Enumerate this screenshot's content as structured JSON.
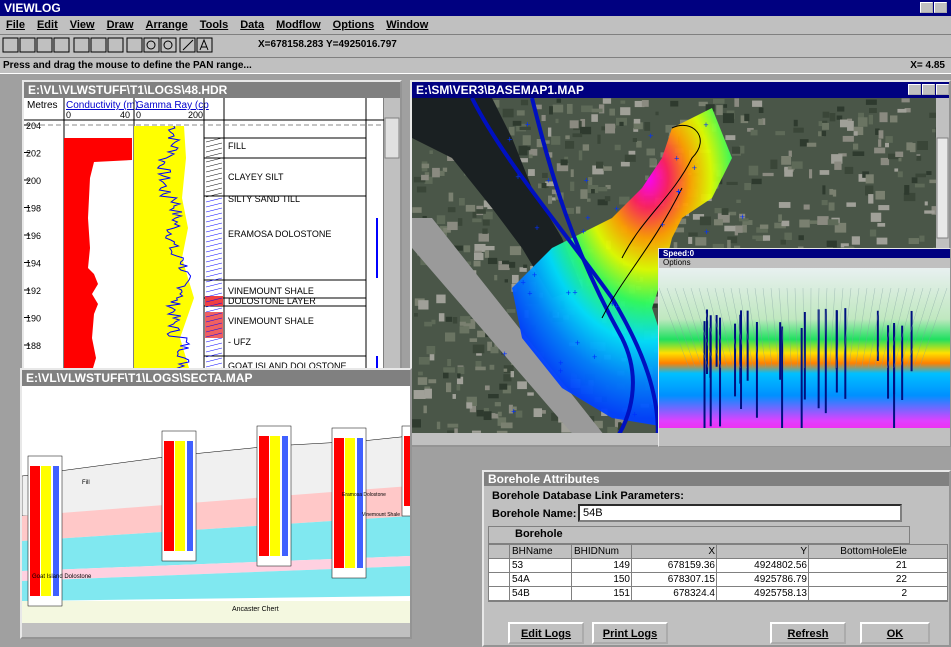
{
  "app": {
    "title": "VIEWLOG",
    "menu": [
      "File",
      "Edit",
      "View",
      "Draw",
      "Arrange",
      "Tools",
      "Data",
      "Modflow",
      "Options",
      "Window"
    ],
    "coords": "X=678158.283 Y=4925016.797",
    "status": "Press and drag the mouse to define the PAN range...",
    "status_right": "X= 4.85"
  },
  "log_window": {
    "title": "E:\\VL\\VLWSTUFF\\T1\\LOGS\\48.HDR",
    "depth_header": "Metres",
    "track1": "Conductivity (m)",
    "track2": "Gamma Ray (cp",
    "track1_scale": [
      "0",
      "40"
    ],
    "track2_scale": [
      "0",
      "200"
    ],
    "depths": [
      "204",
      "202",
      "200",
      "198",
      "196",
      "194",
      "192",
      "190",
      "188"
    ],
    "units": [
      "FILL",
      "CLAYEY SILT",
      "SILTY SAND TILL",
      "ERAMOSA DOLOSTONE",
      "VINEMOUNT SHALE",
      "DOLOSTONE LAYER",
      "VINEMOUNT SHALE",
      "- UFZ",
      "GOAT ISLAND DOLOSTONE"
    ]
  },
  "basemap_window": {
    "title": "E:\\SM\\VER3\\BASEMAP1.MAP"
  },
  "view3d_window": {
    "title": "Speed:0",
    "menu": "Options"
  },
  "section_window": {
    "title": "E:\\VL\\VLWSTUFF\\T1\\LOGS\\SECTA.MAP",
    "fill_label": "Fill",
    "goat_label": "Goat Island Dolostone",
    "chert_label": "Ancaster Chert",
    "vinemount_label": "Vinemount Shale",
    "eramosa_label": "Eramosa Dolostone"
  },
  "borehole_window": {
    "title": "Borehole Attributes",
    "subtitle": "Borehole Database Link Parameters:",
    "name_label": "Borehole Name:",
    "name_value": "54B",
    "nav_label": "Borehole",
    "table": {
      "columns": [
        "BHName",
        "BHIDNum",
        "X",
        "Y",
        "BottomHoleEle"
      ],
      "rows": [
        [
          "53",
          149,
          678159.36,
          4924802.56,
          21
        ],
        [
          "54A",
          150,
          678307.15,
          4925786.79,
          22
        ],
        [
          "54B",
          151,
          678324.4,
          4925758.13,
          2
        ]
      ]
    },
    "buttons": [
      "Edit Logs",
      "Print Logs",
      "Refresh",
      "OK"
    ]
  }
}
